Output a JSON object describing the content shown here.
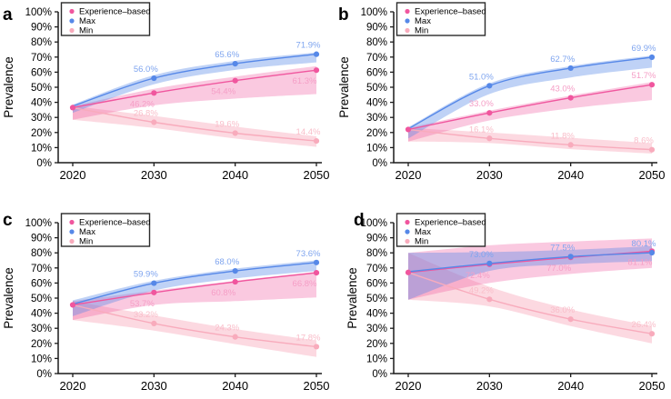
{
  "figure": {
    "ylabel": "Prevalence",
    "background": "#ffffff",
    "axis_color": "#1a1a1a",
    "legend": {
      "position": "top-left",
      "border_color": "#2b2b2b",
      "items": [
        {
          "label": "Experience–based",
          "color": "#F0569E"
        },
        {
          "label": "Max",
          "color": "#5688E8"
        },
        {
          "label": "Min",
          "color": "#F8ABBC"
        }
      ]
    }
  },
  "chart_data": [
    {
      "type": "line",
      "panel_label": "a",
      "x": [
        2020,
        2030,
        2040,
        2050
      ],
      "xticklabels": [
        "2020",
        "2030",
        "2040",
        "2050"
      ],
      "ylabel": "Prevalence",
      "ylim": [
        0,
        100
      ],
      "yticks": [
        "0%",
        "10%",
        "20%",
        "30%",
        "40%",
        "50%",
        "60%",
        "70%",
        "80%",
        "90%",
        "100%"
      ],
      "grid": false,
      "legend_position": "top-left",
      "series": [
        {
          "name": "Experience–based",
          "color": "#F0569E",
          "label_color": "#F59EC6",
          "band_opacity": 0.32,
          "label_side": "below",
          "start_dot": true,
          "values": [
            36.5,
            46.2,
            54.4,
            61.3
          ],
          "labels": [
            "",
            "46.2%",
            "54.4%",
            "61.3%"
          ],
          "band_lower": [
            28.5,
            38,
            42.5,
            45.5
          ],
          "band_upper": [
            37.5,
            49,
            57,
            64
          ]
        },
        {
          "name": "Max",
          "color": "#5688E8",
          "label_color": "#7FA5EF",
          "band_opacity": 0.38,
          "label_side": "above",
          "start_dot": false,
          "values": [
            37.5,
            56.0,
            65.6,
            71.9
          ],
          "labels": [
            "",
            "56.0%",
            "65.6%",
            "71.9%"
          ],
          "band_lower": [
            33,
            52,
            61.5,
            66.5
          ],
          "band_upper": [
            38.5,
            58,
            67.5,
            73
          ]
        },
        {
          "name": "Min",
          "color": "#F8ABBC",
          "label_color": "#F9BDC9",
          "band_opacity": 0.45,
          "label_side": "above",
          "start_dot": false,
          "values": [
            36.5,
            26.8,
            19.6,
            14.4
          ],
          "labels": [
            "",
            "26.8%",
            "19.6%",
            "14.4%"
          ],
          "band_lower": [
            28.5,
            23,
            16,
            10.5
          ],
          "band_upper": [
            37.5,
            31,
            24,
            17.5
          ]
        }
      ]
    },
    {
      "type": "line",
      "panel_label": "b",
      "x": [
        2020,
        2030,
        2040,
        2050
      ],
      "xticklabels": [
        "2020",
        "2030",
        "2040",
        "2050"
      ],
      "ylabel": "Prevalence",
      "ylim": [
        0,
        100
      ],
      "yticks": [
        "0%",
        "10%",
        "20%",
        "30%",
        "40%",
        "50%",
        "60%",
        "70%",
        "80%",
        "90%",
        "100%"
      ],
      "grid": false,
      "legend_position": "top-left",
      "series": [
        {
          "name": "Experience–based",
          "color": "#F0569E",
          "label_color": "#F59EC6",
          "band_opacity": 0.32,
          "label_side": "above",
          "start_dot": true,
          "values": [
            22,
            33.0,
            43.0,
            51.7
          ],
          "labels": [
            "",
            "33.0%",
            "43.0%",
            "51.7%"
          ],
          "band_lower": [
            14,
            28,
            36,
            41.5
          ],
          "band_upper": [
            23,
            34.5,
            44.5,
            53.5
          ]
        },
        {
          "name": "Max",
          "color": "#5688E8",
          "label_color": "#7FA5EF",
          "band_opacity": 0.38,
          "label_side": "above",
          "start_dot": false,
          "values": [
            22.5,
            51.0,
            62.7,
            69.9
          ],
          "labels": [
            "",
            "51.0%",
            "62.7%",
            "69.9%"
          ],
          "band_lower": [
            16,
            45.5,
            56.5,
            63
          ],
          "band_upper": [
            23.5,
            52.5,
            64,
            71
          ]
        },
        {
          "name": "Min",
          "color": "#F8ABBC",
          "label_color": "#F9BDC9",
          "band_opacity": 0.45,
          "label_side": "above",
          "start_dot": false,
          "values": [
            22,
            16.1,
            11.8,
            8.6
          ],
          "labels": [
            "",
            "16.1%",
            "11.8%",
            "8.6%"
          ],
          "band_lower": [
            14,
            13,
            9,
            6
          ],
          "band_upper": [
            23,
            20,
            16.5,
            13
          ]
        }
      ]
    },
    {
      "type": "line",
      "panel_label": "c",
      "x": [
        2020,
        2030,
        2040,
        2050
      ],
      "xticklabels": [
        "2020",
        "2030",
        "2040",
        "2050"
      ],
      "ylabel": "Prevalence",
      "ylim": [
        0,
        100
      ],
      "yticks": [
        "0%",
        "10%",
        "20%",
        "30%",
        "40%",
        "50%",
        "60%",
        "70%",
        "80%",
        "90%",
        "100%"
      ],
      "grid": false,
      "legend_position": "top-left",
      "series": [
        {
          "name": "Experience–based",
          "color": "#F0569E",
          "label_color": "#F59EC6",
          "band_opacity": 0.32,
          "label_side": "below",
          "start_dot": true,
          "values": [
            45.5,
            53.7,
            60.8,
            66.8
          ],
          "labels": [
            "",
            "53.7%",
            "60.8%",
            "66.8%"
          ],
          "band_lower": [
            35.5,
            45.5,
            48,
            50.5
          ],
          "band_upper": [
            48,
            55,
            61.5,
            67.5
          ]
        },
        {
          "name": "Max",
          "color": "#5688E8",
          "label_color": "#7FA5EF",
          "band_opacity": 0.38,
          "label_side": "above",
          "start_dot": false,
          "values": [
            46,
            59.9,
            68.0,
            73.6
          ],
          "labels": [
            "",
            "59.9%",
            "68.0%",
            "73.6%"
          ],
          "band_lower": [
            38,
            55,
            63,
            68
          ],
          "band_upper": [
            48.5,
            61.5,
            69.5,
            75
          ]
        },
        {
          "name": "Min",
          "color": "#F8ABBC",
          "label_color": "#F9BDC9",
          "band_opacity": 0.45,
          "label_side": "above",
          "start_dot": false,
          "values": [
            45.5,
            33.2,
            24.3,
            17.8
          ],
          "labels": [
            "",
            "33.2%",
            "24.3%",
            "17.8%"
          ],
          "band_lower": [
            35.5,
            28.5,
            19.5,
            11
          ],
          "band_upper": [
            48,
            38.5,
            29.5,
            22
          ]
        }
      ]
    },
    {
      "type": "line",
      "panel_label": "d",
      "x": [
        2020,
        2030,
        2040,
        2050
      ],
      "xticklabels": [
        "2020",
        "2030",
        "2040",
        "2050"
      ],
      "ylabel": "Prevalence",
      "ylim": [
        0,
        100
      ],
      "yticks": [
        "0%",
        "10%",
        "20%",
        "30%",
        "40%",
        "50%",
        "60%",
        "70%",
        "80%",
        "90%",
        "100%"
      ],
      "grid": false,
      "legend_position": "top-left",
      "series": [
        {
          "name": "Experience–based",
          "color": "#F0569E",
          "label_color": "#F59EC6",
          "band_opacity": 0.32,
          "label_side": "below",
          "start_dot": true,
          "values": [
            67,
            72.4,
            77.0,
            81.1
          ],
          "labels": [
            "",
            "72.4%",
            "77.0%",
            "81.1%"
          ],
          "band_lower": [
            49,
            60,
            66,
            70
          ],
          "band_upper": [
            80,
            85,
            87.5,
            89.5
          ]
        },
        {
          "name": "Max",
          "color": "#5688E8",
          "label_color": "#7FA5EF",
          "band_opacity": 0.38,
          "label_side": "above",
          "start_dot": false,
          "values": [
            67.5,
            73.0,
            77.5,
            80.1
          ],
          "labels": [
            "",
            "73.0%",
            "77.5%",
            "80.1%"
          ],
          "band_lower": [
            49,
            68,
            72.5,
            74.5
          ],
          "band_upper": [
            80,
            80.5,
            82,
            84.5
          ]
        },
        {
          "name": "Min",
          "color": "#F8ABBC",
          "label_color": "#F9BDC9",
          "band_opacity": 0.45,
          "label_side": "above",
          "start_dot": false,
          "values": [
            67,
            49.2,
            36.0,
            26.4
          ],
          "labels": [
            "",
            "49.2%",
            "36.0%",
            "26.4%"
          ],
          "band_lower": [
            49,
            44.5,
            31.5,
            20
          ],
          "band_upper": [
            80,
            57.5,
            42.5,
            31.5
          ]
        }
      ]
    }
  ]
}
